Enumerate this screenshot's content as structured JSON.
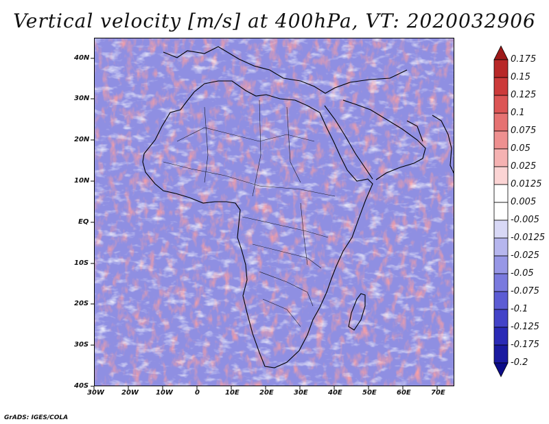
{
  "title": "Vertical velocity [m/s] at 400hPa, VT: 2020032906",
  "credit": "GrADS: IGES/COLA",
  "map": {
    "region": "Africa and surrounding oceans",
    "lon_labels": [
      "30W",
      "20W",
      "10W",
      "0",
      "10E",
      "20E",
      "30E",
      "40E",
      "50E",
      "60E",
      "70E"
    ],
    "lat_labels": [
      "40N",
      "30N",
      "20N",
      "10N",
      "EQ",
      "10S",
      "20S",
      "30S",
      "40S"
    ],
    "lon_range": [
      -30,
      75
    ],
    "lat_range": [
      -40,
      45
    ]
  },
  "colorbar": {
    "levels": [
      "0.175",
      "0.15",
      "0.125",
      "0.1",
      "0.075",
      "0.05",
      "0.025",
      "0.0125",
      "0.005",
      "-0.005",
      "-0.0125",
      "-0.025",
      "-0.05",
      "-0.075",
      "-0.1",
      "-0.125",
      "-0.175",
      "-0.2"
    ],
    "colors": [
      "#9e1a1a",
      "#b82828",
      "#cc3a3a",
      "#dc5555",
      "#e67272",
      "#ee9090",
      "#f5b2b2",
      "#fbd4d4",
      "#ffffff",
      "#ffffff",
      "#d8d8f6",
      "#b6b6ee",
      "#9797e6",
      "#7a7ade",
      "#5c5cd4",
      "#4343c8",
      "#2a2ab6",
      "#1a1aa0",
      "#0c0c88"
    ]
  }
}
